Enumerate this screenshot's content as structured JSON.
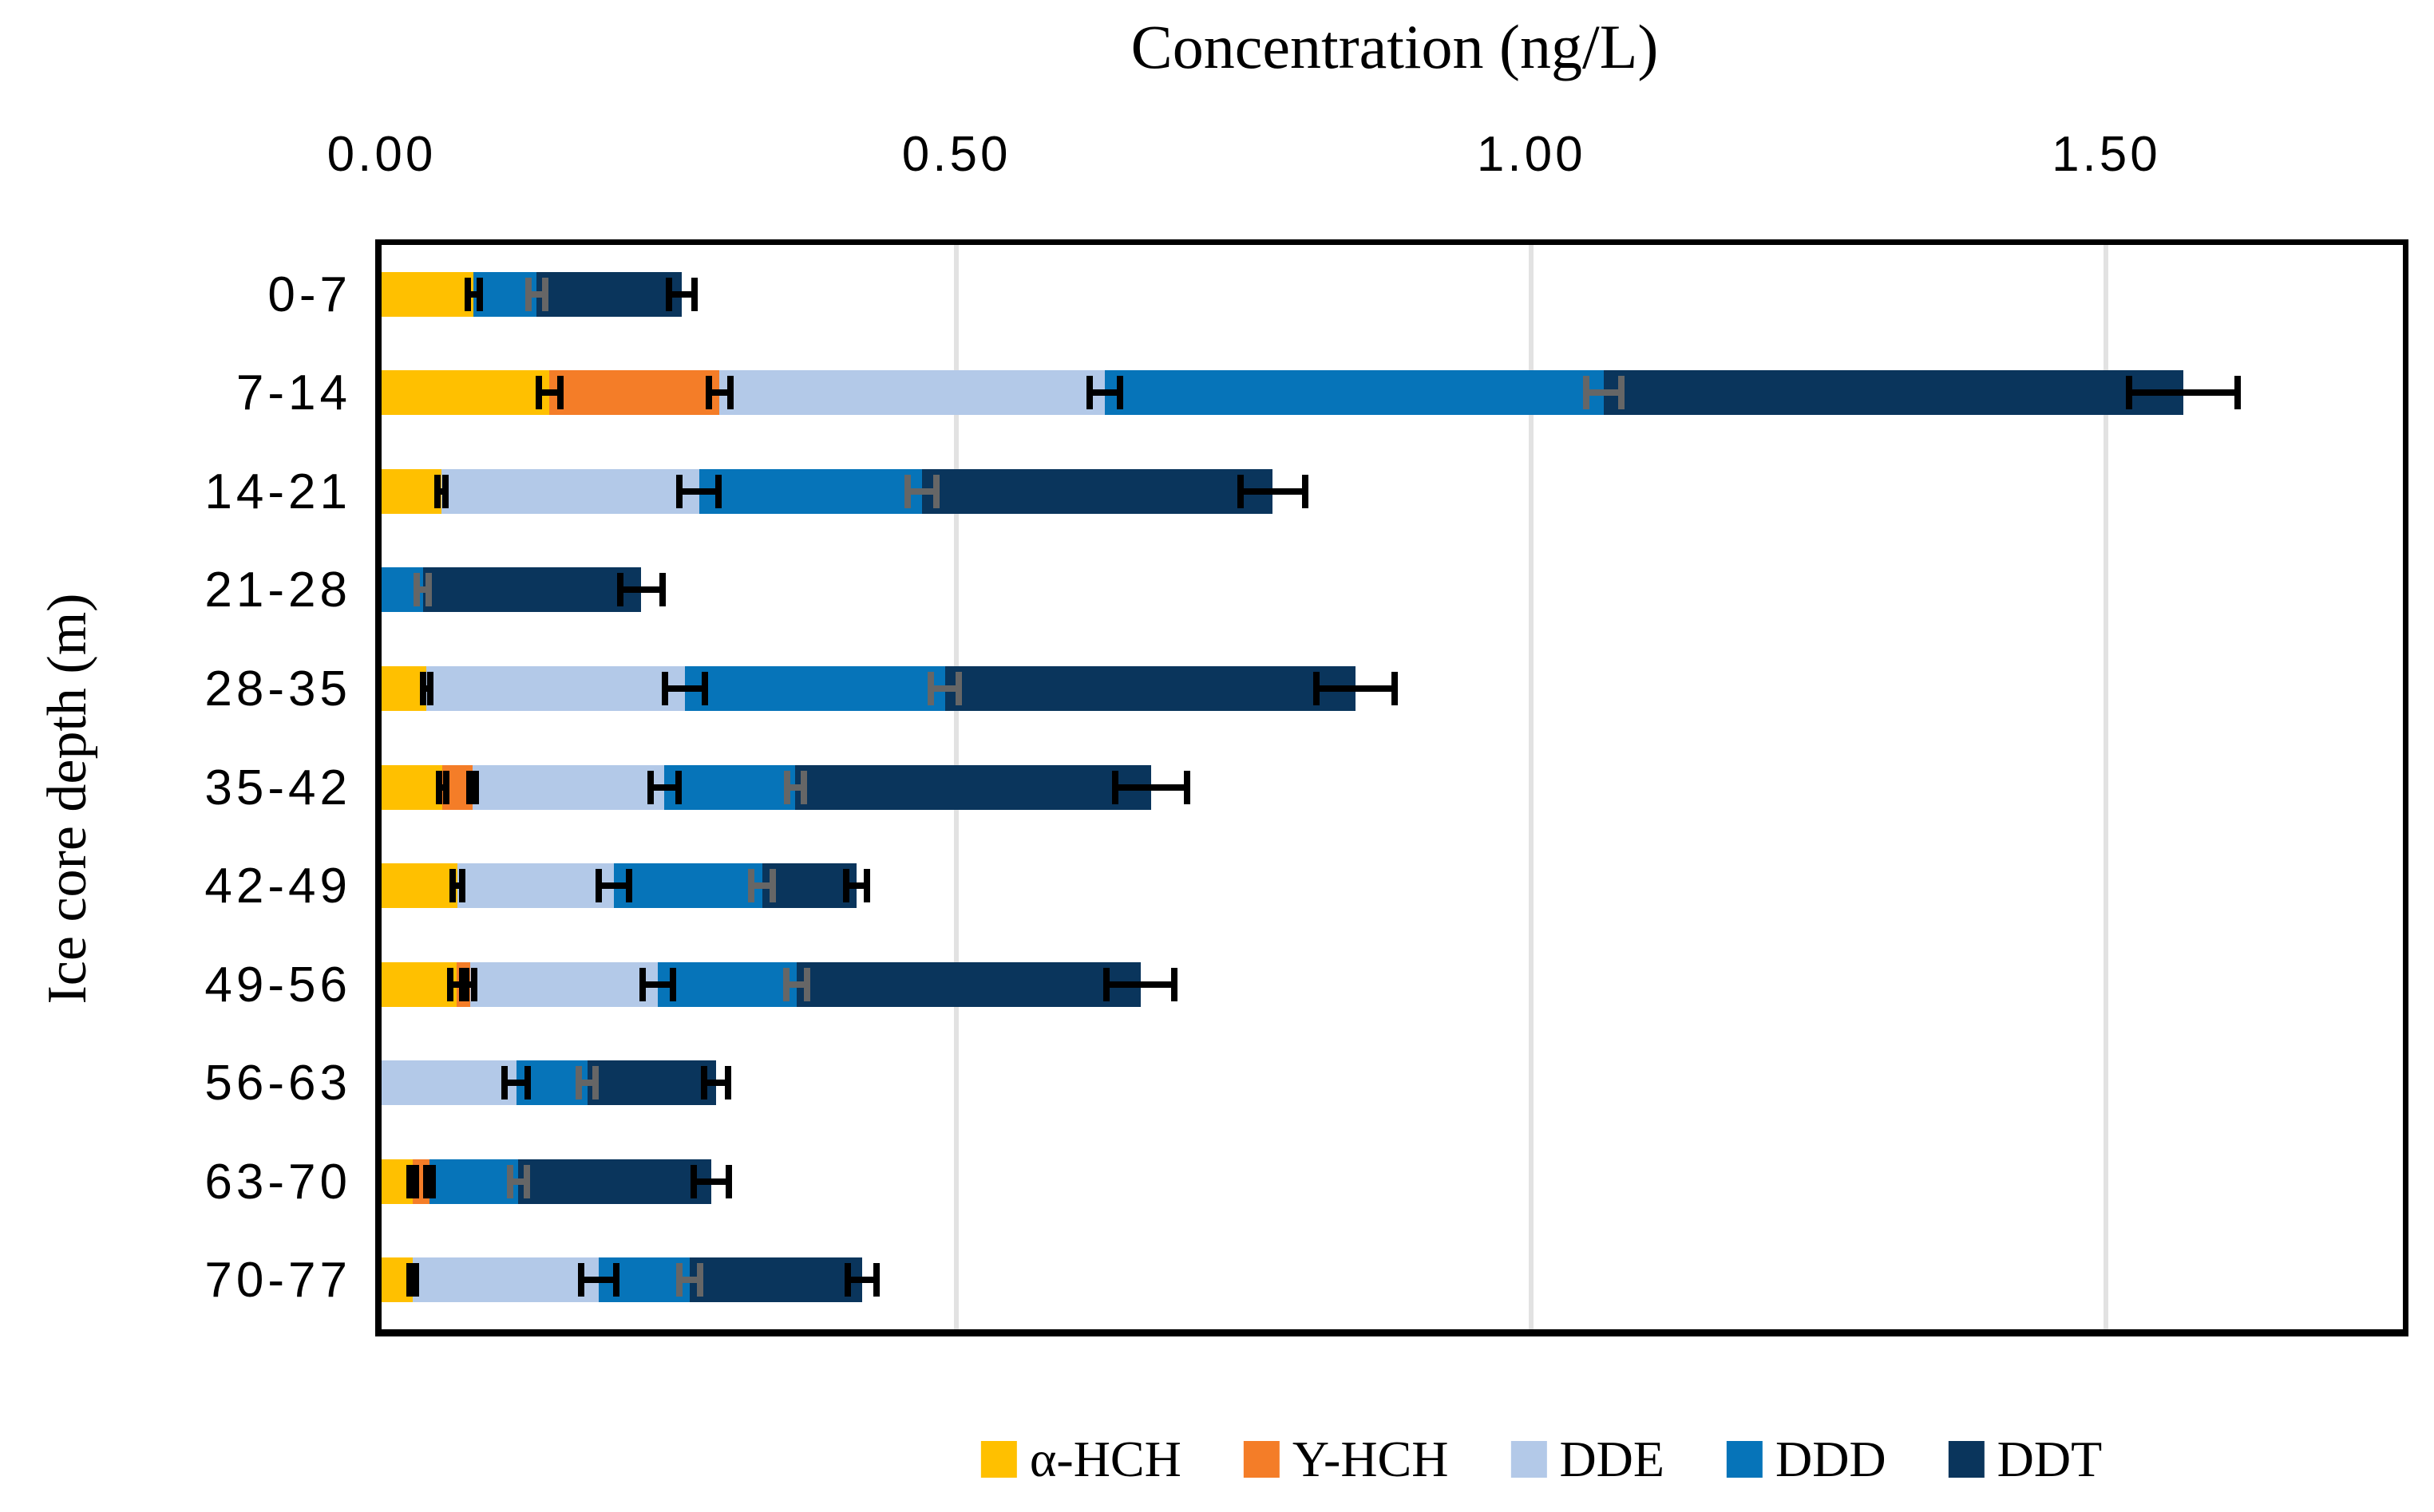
{
  "chart_data": {
    "type": "bar",
    "orientation": "horizontal",
    "stacked": true,
    "title": "Concentration (ng/L)",
    "xlabel": "Concentration (ng/L)",
    "ylabel": "Ice core depth (m)",
    "xlim": [
      0,
      1.758
    ],
    "x_tick_values": [
      0,
      0.5,
      1.0,
      1.5
    ],
    "x_tick_labels": [
      "0.00",
      "0.50",
      "1.00",
      "1.50"
    ],
    "grid": "vertical",
    "gridline_color": "#e2e2e2",
    "legend_position": "bottom",
    "categories": [
      "0-7",
      "7-14",
      "14-21",
      "21-28",
      "28-35",
      "35-42",
      "42-49",
      "49-56",
      "56-63",
      "63-70",
      "70-77"
    ],
    "series": [
      {
        "name": "α-HCH",
        "color": "#FFC000",
        "error_color": "#000000",
        "values": [
          0.08,
          0.146,
          0.052,
          0,
          0.039,
          0.053,
          0.066,
          0.065,
          0,
          0.027,
          0.027
        ],
        "errors": [
          0.008,
          0.012,
          0.006,
          0,
          0.006,
          0.006,
          0.007,
          0.008,
          0,
          0.005,
          0.005
        ]
      },
      {
        "name": "Υ-HCH",
        "color": "#F47D28",
        "error_color": "#000000",
        "values": [
          0,
          0.148,
          0,
          0,
          0,
          0.026,
          0,
          0.012,
          0,
          0.015,
          0
        ],
        "errors": [
          0,
          0.012,
          0,
          0,
          0,
          0.005,
          0,
          0.006,
          0,
          0.005,
          0
        ]
      },
      {
        "name": "DDE",
        "color": "#B3C9E8",
        "error_color": "#000000",
        "values": [
          0,
          0.335,
          0.224,
          0,
          0.225,
          0.167,
          0.136,
          0.163,
          0.117,
          0,
          0.162
        ],
        "errors": [
          0,
          0.016,
          0.02,
          0,
          0.02,
          0.015,
          0.016,
          0.016,
          0.013,
          0,
          0.018
        ]
      },
      {
        "name": "DDD",
        "color": "#0674B9",
        "error_color": "#666666",
        "values": [
          0.055,
          0.434,
          0.194,
          0.036,
          0.226,
          0.114,
          0.129,
          0.121,
          0.062,
          0.077,
          0.079
        ],
        "errors": [
          0.01,
          0.018,
          0.015,
          0.008,
          0.015,
          0.01,
          0.012,
          0.012,
          0.01,
          0.01,
          0.012
        ]
      },
      {
        "name": "DDT",
        "color": "#0A355C",
        "error_color": "#000000",
        "values": [
          0.126,
          0.504,
          0.305,
          0.19,
          0.357,
          0.309,
          0.082,
          0.299,
          0.112,
          0.168,
          0.15
        ],
        "errors": [
          0.014,
          0.05,
          0.031,
          0.021,
          0.037,
          0.034,
          0.012,
          0.032,
          0.013,
          0.018,
          0.015
        ]
      }
    ]
  }
}
